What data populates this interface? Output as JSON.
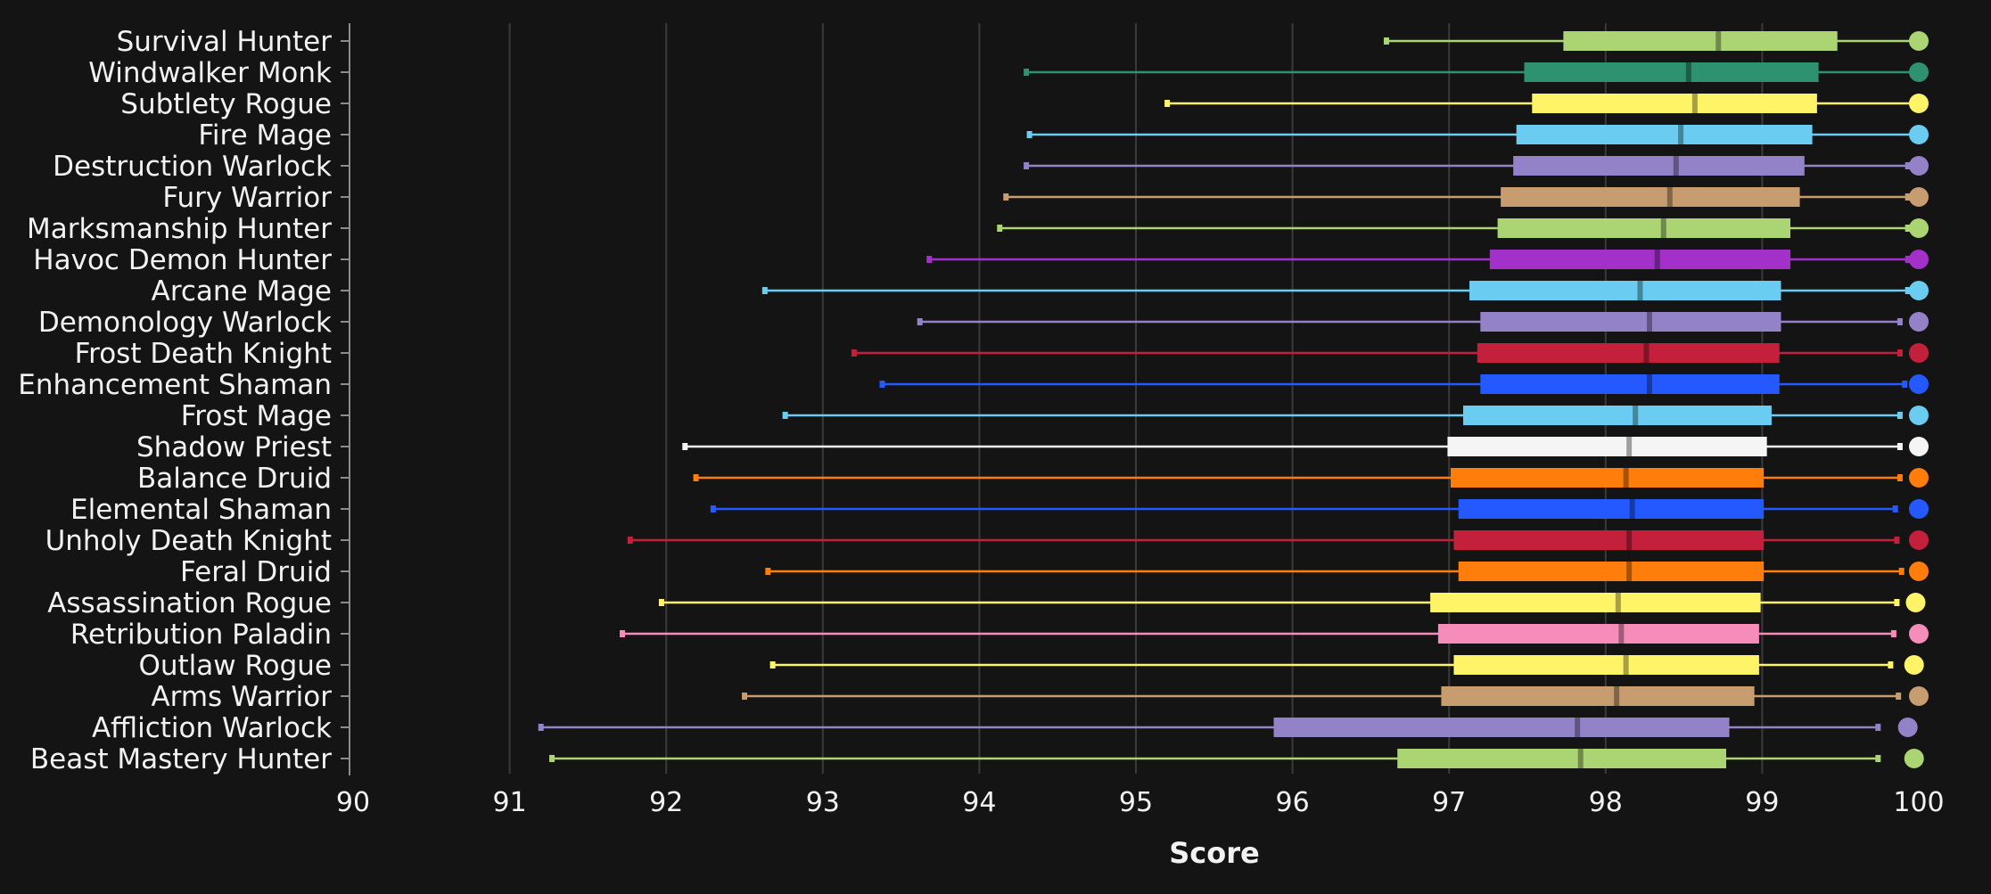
{
  "colors": {
    "background": "#141414",
    "grid": "#3a3a3a",
    "axis": "#8c8c8c",
    "text": "#f2f2f2"
  },
  "chart_data": {
    "type": "box",
    "orientation": "horizontal",
    "title": "",
    "xlabel": "Score",
    "ylabel": "",
    "xlim": [
      90,
      100
    ],
    "x_ticks": [
      "90",
      "91",
      "92",
      "93",
      "94",
      "95",
      "96",
      "97",
      "98",
      "99",
      "100"
    ],
    "grid": "vertical",
    "legend": "none",
    "specs": [
      {
        "label": "Survival Hunter",
        "color": "#abd473",
        "min": 96.6,
        "q1": 97.73,
        "median": 98.72,
        "q3": 99.48,
        "max": 100.0,
        "top": 100.0
      },
      {
        "label": "Windwalker Monk",
        "color": "#2e9170",
        "min": 94.3,
        "q1": 97.48,
        "median": 98.53,
        "q3": 99.36,
        "max": 100.0,
        "top": 100.0
      },
      {
        "label": "Subtlety Rogue",
        "color": "#fff468",
        "min": 95.2,
        "q1": 97.53,
        "median": 98.57,
        "q3": 99.35,
        "max": 100.0,
        "top": 100.0
      },
      {
        "label": "Fire Mage",
        "color": "#69ccf0",
        "min": 94.32,
        "q1": 97.43,
        "median": 98.48,
        "q3": 99.32,
        "max": 100.0,
        "top": 100.0
      },
      {
        "label": "Destruction Warlock",
        "color": "#9482c9",
        "min": 94.3,
        "q1": 97.41,
        "median": 98.45,
        "q3": 99.27,
        "max": 99.93,
        "top": 100.0
      },
      {
        "label": "Fury Warrior",
        "color": "#c79c6e",
        "min": 94.17,
        "q1": 97.33,
        "median": 98.41,
        "q3": 99.24,
        "max": 99.93,
        "top": 100.0
      },
      {
        "label": "Marksmanship Hunter",
        "color": "#abd473",
        "min": 94.13,
        "q1": 97.31,
        "median": 98.37,
        "q3": 99.18,
        "max": 99.93,
        "top": 100.0
      },
      {
        "label": "Havoc Demon Hunter",
        "color": "#a330c9",
        "min": 93.68,
        "q1": 97.26,
        "median": 98.33,
        "q3": 99.18,
        "max": 99.93,
        "top": 100.0
      },
      {
        "label": "Arcane Mage",
        "color": "#69ccf0",
        "min": 92.63,
        "q1": 97.13,
        "median": 98.22,
        "q3": 99.12,
        "max": 99.93,
        "top": 100.0
      },
      {
        "label": "Demonology Warlock",
        "color": "#9482c9",
        "min": 93.62,
        "q1": 97.2,
        "median": 98.28,
        "q3": 99.12,
        "max": 99.88,
        "top": 100.0
      },
      {
        "label": "Frost Death Knight",
        "color": "#c41f3b",
        "min": 93.2,
        "q1": 97.18,
        "median": 98.26,
        "q3": 99.11,
        "max": 99.88,
        "top": 100.0
      },
      {
        "label": "Enhancement Shaman",
        "color": "#2459ff",
        "min": 93.38,
        "q1": 97.2,
        "median": 98.28,
        "q3": 99.11,
        "max": 99.91,
        "top": 100.0
      },
      {
        "label": "Frost Mage",
        "color": "#69ccf0",
        "min": 92.76,
        "q1": 97.09,
        "median": 98.19,
        "q3": 99.06,
        "max": 99.88,
        "top": 100.0
      },
      {
        "label": "Shadow Priest",
        "color": "#f5f5f5",
        "min": 92.12,
        "q1": 96.99,
        "median": 98.15,
        "q3": 99.03,
        "max": 99.88,
        "top": 100.0
      },
      {
        "label": "Balance Druid",
        "color": "#ff7d0a",
        "min": 92.19,
        "q1": 97.01,
        "median": 98.13,
        "q3": 99.01,
        "max": 99.88,
        "top": 100.0
      },
      {
        "label": "Elemental Shaman",
        "color": "#2459ff",
        "min": 92.3,
        "q1": 97.06,
        "median": 98.17,
        "q3": 99.01,
        "max": 99.85,
        "top": 100.0
      },
      {
        "label": "Unholy Death Knight",
        "color": "#c41f3b",
        "min": 91.77,
        "q1": 97.03,
        "median": 98.15,
        "q3": 99.01,
        "max": 99.86,
        "top": 100.0
      },
      {
        "label": "Feral Druid",
        "color": "#ff7d0a",
        "min": 92.65,
        "q1": 97.06,
        "median": 98.15,
        "q3": 99.01,
        "max": 99.89,
        "top": 100.0
      },
      {
        "label": "Assassination Rogue",
        "color": "#fff468",
        "min": 91.97,
        "q1": 96.88,
        "median": 98.08,
        "q3": 98.99,
        "max": 99.86,
        "top": 99.98
      },
      {
        "label": "Retribution Paladin",
        "color": "#f58cba",
        "min": 91.72,
        "q1": 96.93,
        "median": 98.1,
        "q3": 98.98,
        "max": 99.84,
        "top": 100.0
      },
      {
        "label": "Outlaw Rogue",
        "color": "#fff468",
        "min": 92.68,
        "q1": 97.03,
        "median": 98.13,
        "q3": 98.98,
        "max": 99.82,
        "top": 99.97
      },
      {
        "label": "Arms Warrior",
        "color": "#c79c6e",
        "min": 92.5,
        "q1": 96.95,
        "median": 98.07,
        "q3": 98.95,
        "max": 99.87,
        "top": 100.0
      },
      {
        "label": "Affliction Warlock",
        "color": "#9482c9",
        "min": 91.2,
        "q1": 95.88,
        "median": 97.82,
        "q3": 98.79,
        "max": 99.74,
        "top": 99.93
      },
      {
        "label": "Beast Mastery Hunter",
        "color": "#abd473",
        "min": 91.27,
        "q1": 96.67,
        "median": 97.84,
        "q3": 98.77,
        "max": 99.74,
        "top": 99.97
      }
    ]
  }
}
